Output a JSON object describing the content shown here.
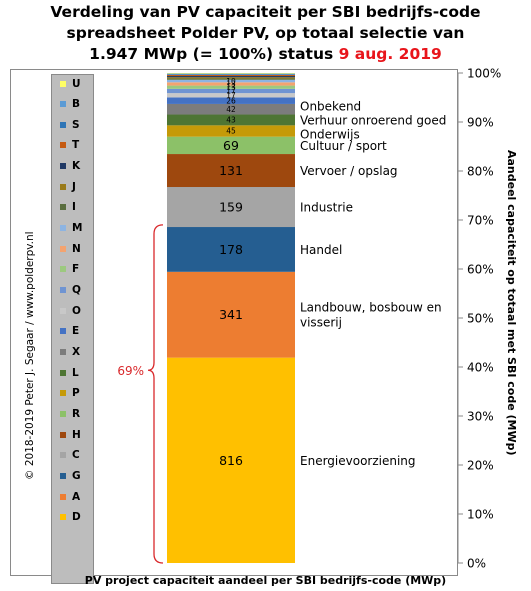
{
  "title": {
    "line1": "Verdeling van PV capaciteit per SBI bedrijfs-code",
    "line2": "spreadsheet Polder PV, op totaal selectie van",
    "line3_prefix": "1.947 MWp (= 100%) status",
    "line3_date": "9 aug. 2019"
  },
  "credit": "© 2018-2019  Peter J. Segaar / www.polderpv.nl",
  "colors": {
    "date_red": "#e8151b",
    "bracket_red": "#d9282b"
  },
  "chart_data": {
    "type": "bar",
    "stacked": true,
    "total_mwp": 1947,
    "title": "Verdeling van PV capaciteit per SBI bedrijfs-code spreadsheet Polder PV, op totaal selectie van 1.947 MWp (= 100%) status 9 aug. 2019",
    "xlabel": "PV project capaciteit aandeel per SBI bedrijfs-code (MWp)",
    "ylabel": "Aandeel capaciteit op totaal met SBI code (MWp)",
    "ylim": [
      0,
      100
    ],
    "yticks": [
      "0%",
      "10%",
      "20%",
      "30%",
      "40%",
      "50%",
      "60%",
      "70%",
      "80%",
      "90%",
      "100%"
    ],
    "grid": false,
    "legend_position": "left",
    "segments": [
      {
        "code": "D",
        "value": 816,
        "label": "816",
        "name": "Energievoorziening",
        "color": "#ffc000"
      },
      {
        "code": "A",
        "value": 341,
        "label": "341",
        "name": "Landbouw, bosbouw en visserij",
        "color": "#ed7d31"
      },
      {
        "code": "G",
        "value": 178,
        "label": "178",
        "name": "Handel",
        "color": "#255e91"
      },
      {
        "code": "C",
        "value": 159,
        "label": "159",
        "name": "Industrie",
        "color": "#a5a5a5"
      },
      {
        "code": "H",
        "value": 131,
        "label": "131",
        "name": "Vervoer / opslag",
        "color": "#9e480e"
      },
      {
        "code": "R",
        "value": 69,
        "label": "69",
        "name": "Cultuur / sport",
        "color": "#8cc168"
      },
      {
        "code": "P",
        "value": 45,
        "label": "45",
        "name": "Onderwijs",
        "color": "#c59a08"
      },
      {
        "code": "L",
        "value": 43,
        "label": "43",
        "name": "Verhuur onroerend goed",
        "color": "#4e7533"
      },
      {
        "code": "X",
        "value": 42,
        "label": "42",
        "name": "Onbekend",
        "color": "#7c7c7c"
      },
      {
        "code": "E",
        "value": 26,
        "label": "26",
        "name": "",
        "color": "#4472c4"
      },
      {
        "code": "O",
        "value": 17,
        "label": "17",
        "name": "",
        "color": "#c8c8c8"
      },
      {
        "code": "Q",
        "value": 17,
        "label": "17",
        "name": "",
        "color": "#6f94d2"
      },
      {
        "code": "F",
        "value": 13,
        "label": "13",
        "name": "",
        "color": "#9cc97f"
      },
      {
        "code": "N",
        "value": 13,
        "label": "13",
        "name": "",
        "color": "#f4a36f"
      },
      {
        "code": "M",
        "value": 10,
        "label": "10",
        "name": "",
        "color": "#8db4e2"
      },
      {
        "code": "I",
        "value": 5,
        "label": "",
        "name": "",
        "color": "#5a6e3f"
      },
      {
        "code": "J",
        "value": 5,
        "label": "",
        "name": "",
        "color": "#9a7b1a"
      },
      {
        "code": "K",
        "value": 5,
        "label": "",
        "name": "",
        "color": "#1f3864"
      },
      {
        "code": "T",
        "value": 4,
        "label": "",
        "name": "",
        "color": "#c55a11"
      },
      {
        "code": "S",
        "value": 3,
        "label": "",
        "name": "",
        "color": "#2e75b6"
      },
      {
        "code": "B",
        "value": 3,
        "label": "",
        "name": "",
        "color": "#5b9bd5"
      },
      {
        "code": "U",
        "value": 2,
        "label": "",
        "name": "",
        "color": "#ffff66"
      }
    ],
    "annotations": [
      {
        "text": "69%",
        "type": "bracket",
        "from_percent": 0,
        "to_percent": 69
      }
    ]
  }
}
